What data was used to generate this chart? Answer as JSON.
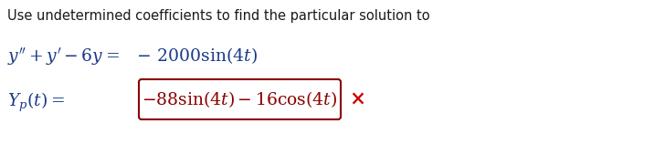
{
  "title_text": "Use undetermined coefficients to find the particular solution to",
  "title_color": "#1a1a1a",
  "title_fontsize": 10.5,
  "eq1_color": "#1a3a8a",
  "eq1_fontsize": 13.5,
  "eq2_label_color": "#1a3a8a",
  "eq2_box_color": "#8b0000",
  "eq2_fontsize": 13.5,
  "cross_color": "#cc0000",
  "background_color": "#ffffff",
  "box_border_color": "#8b0000",
  "box_facecolor": "#ffffff"
}
